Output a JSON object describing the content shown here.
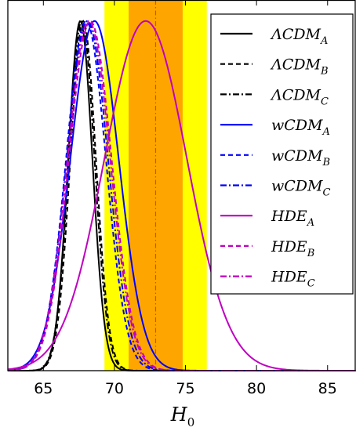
{
  "chart_data": {
    "type": "line",
    "xlabel": "H",
    "xlabel_sub": "0",
    "xlim": [
      62.5,
      87
    ],
    "ylim": [
      0,
      1.06
    ],
    "xticks": [
      "65",
      "70",
      "75",
      "80",
      "85"
    ],
    "xtick_values": [
      65,
      70,
      75,
      80,
      85
    ],
    "yticks_labeled": false,
    "bands": [
      {
        "from": 69.3,
        "to": 76.5,
        "color": "#ffff00"
      },
      {
        "from": 71.0,
        "to": 74.8,
        "color": "#ffa500"
      }
    ],
    "reference_line": {
      "x": 72.9,
      "color": "#cc5500",
      "style": "dash-dot"
    },
    "legend_position": "upper-right",
    "series": [
      {
        "name": "ΛCDM",
        "sub": "A",
        "color": "#000000",
        "dash": "solid",
        "mean": 67.6,
        "sigma": 0.85
      },
      {
        "name": "ΛCDM",
        "sub": "B",
        "color": "#000000",
        "dash": "dashed",
        "mean": 67.8,
        "sigma": 0.9
      },
      {
        "name": "ΛCDM",
        "sub": "C",
        "color": "#000000",
        "dash": "dashdot",
        "mean": 67.7,
        "sigma": 0.9
      },
      {
        "name": "wCDM",
        "sub": "A",
        "color": "#0000ff",
        "dash": "solid",
        "mean": 68.6,
        "sigma": 1.7
      },
      {
        "name": "wCDM",
        "sub": "B",
        "color": "#0000ff",
        "dash": "dashed",
        "mean": 68.0,
        "sigma": 1.4
      },
      {
        "name": "wCDM",
        "sub": "C",
        "color": "#0000ff",
        "dash": "dashdot",
        "mean": 68.1,
        "sigma": 1.45
      },
      {
        "name": "HDE",
        "sub": "A",
        "color": "#c000c0",
        "dash": "solid",
        "mean": 72.2,
        "sigma": 2.9
      },
      {
        "name": "HDE",
        "sub": "B",
        "color": "#c000c0",
        "dash": "dashed",
        "mean": 68.3,
        "sigma": 1.5
      },
      {
        "name": "HDE",
        "sub": "C",
        "color": "#c000c0",
        "dash": "dashdot",
        "mean": 68.2,
        "sigma": 1.5
      }
    ]
  }
}
